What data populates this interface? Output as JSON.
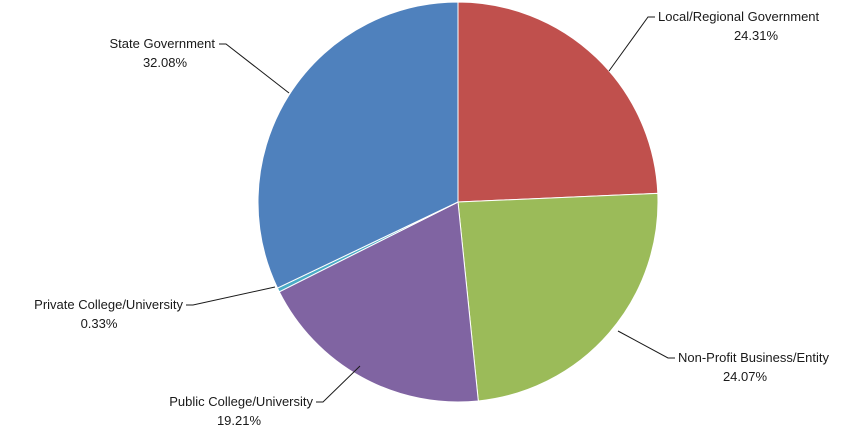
{
  "chart_data": {
    "type": "pie",
    "title": "",
    "start_angle_deg": 0,
    "direction": "clockwise",
    "slices": [
      {
        "label": "Local/Regional Government",
        "value": 24.31,
        "display": "24.31%",
        "color": "#c0504d"
      },
      {
        "label": "Non-Profit Business/Entity",
        "value": 24.07,
        "display": "24.07%",
        "color": "#9bbb59"
      },
      {
        "label": "Public College/University",
        "value": 19.21,
        "display": "19.21%",
        "color": "#8064a2"
      },
      {
        "label": "Private College/University",
        "value": 0.33,
        "display": "0.33%",
        "color": "#4bacc6"
      },
      {
        "label": "State Government",
        "value": 32.08,
        "display": "32.08%",
        "color": "#4f81bd"
      }
    ]
  }
}
